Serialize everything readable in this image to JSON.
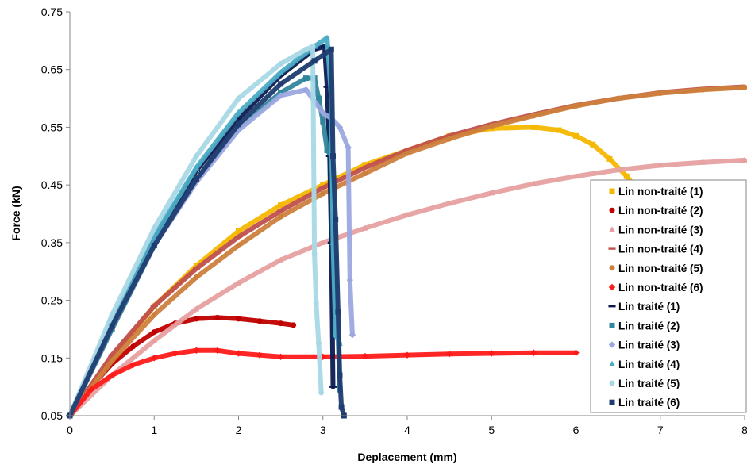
{
  "chart_data": {
    "type": "scatter",
    "title": "",
    "xlabel": "Deplacement (mm)",
    "ylabel": "Force (kN)",
    "xlim": [
      0,
      8
    ],
    "ylim": [
      0.05,
      0.75
    ],
    "x_ticks": [
      "0",
      "1",
      "2",
      "3",
      "4",
      "5",
      "6",
      "7",
      "8"
    ],
    "y_ticks": [
      "0.05",
      "0.15",
      "0.25",
      "0.35",
      "0.45",
      "0.55",
      "0.65",
      "0.75"
    ],
    "grid": false,
    "legend_position": "right",
    "series": [
      {
        "name": "Lin non-traité (1)",
        "color": "#F5B800",
        "marker": "square",
        "x": [
          0,
          0.5,
          1,
          1.5,
          2,
          2.5,
          3,
          3.5,
          4,
          4.5,
          5,
          5.5,
          5.8,
          6,
          6.2,
          6.4,
          6.6,
          6.8
        ],
        "y": [
          0.05,
          0.15,
          0.24,
          0.31,
          0.37,
          0.415,
          0.45,
          0.485,
          0.51,
          0.535,
          0.548,
          0.55,
          0.545,
          0.535,
          0.52,
          0.495,
          0.465,
          0.43
        ]
      },
      {
        "name": "Lin non-traité (2)",
        "color": "#C00000",
        "marker": "circle",
        "x": [
          0,
          0.25,
          0.5,
          0.75,
          1,
          1.25,
          1.5,
          1.75,
          2,
          2.25,
          2.5,
          2.65
        ],
        "y": [
          0.05,
          0.1,
          0.14,
          0.17,
          0.195,
          0.21,
          0.218,
          0.22,
          0.218,
          0.214,
          0.21,
          0.207
        ]
      },
      {
        "name": "Lin non-traité (3)",
        "color": "#E6A0A0",
        "marker": "triangle",
        "x": [
          0,
          0.5,
          1,
          1.5,
          2,
          2.5,
          3,
          3.5,
          4,
          4.5,
          5,
          5.5,
          6,
          6.5,
          7,
          7.5,
          8
        ],
        "y": [
          0.05,
          0.12,
          0.18,
          0.235,
          0.28,
          0.32,
          0.35,
          0.375,
          0.398,
          0.418,
          0.436,
          0.452,
          0.465,
          0.476,
          0.484,
          0.489,
          0.493
        ]
      },
      {
        "name": "Lin non-traité (4)",
        "color": "#C0504D",
        "marker": "dash",
        "x": [
          0,
          0.5,
          1,
          1.5,
          2,
          2.5,
          3,
          3.5,
          4,
          4.5,
          5,
          5.5,
          6,
          6.5,
          7,
          7.5,
          8
        ],
        "y": [
          0.05,
          0.155,
          0.24,
          0.305,
          0.36,
          0.405,
          0.445,
          0.48,
          0.51,
          0.535,
          0.555,
          0.572,
          0.588,
          0.6,
          0.61,
          0.616,
          0.62
        ]
      },
      {
        "name": "Lin non-traité (5)",
        "color": "#CD7F3C",
        "marker": "circle",
        "x": [
          0,
          0.5,
          1,
          1.5,
          2,
          2.5,
          3,
          3.5,
          4,
          4.5,
          5,
          5.5,
          6,
          6.5,
          7,
          7.5,
          8
        ],
        "y": [
          0.05,
          0.145,
          0.225,
          0.29,
          0.345,
          0.395,
          0.435,
          0.47,
          0.505,
          0.53,
          0.552,
          0.57,
          0.587,
          0.6,
          0.609,
          0.615,
          0.619
        ]
      },
      {
        "name": "Lin non-traité (6)",
        "color": "#FF1A1A",
        "marker": "diamond",
        "x": [
          0,
          0.25,
          0.5,
          0.75,
          1,
          1.25,
          1.5,
          1.75,
          2,
          2.25,
          2.5,
          3,
          3.5,
          4,
          4.5,
          5,
          5.5,
          6
        ],
        "y": [
          0.05,
          0.095,
          0.12,
          0.138,
          0.15,
          0.158,
          0.163,
          0.163,
          0.158,
          0.155,
          0.152,
          0.152,
          0.153,
          0.155,
          0.157,
          0.158,
          0.159,
          0.159
        ]
      },
      {
        "name": "Lin traité (1)",
        "color": "#0D1A50",
        "marker": "dash",
        "x": [
          0,
          0.5,
          1,
          1.5,
          2,
          2.5,
          2.9,
          3.02,
          3.05,
          3.08,
          3.1,
          3.12
        ],
        "y": [
          0.05,
          0.215,
          0.355,
          0.475,
          0.565,
          0.64,
          0.685,
          0.69,
          0.62,
          0.5,
          0.35,
          0.1
        ]
      },
      {
        "name": "Lin traité (2)",
        "color": "#31859C",
        "marker": "square",
        "x": [
          0,
          0.5,
          1,
          1.5,
          2,
          2.5,
          2.8,
          2.9,
          2.95,
          3.0,
          3.05,
          3.1,
          3.15,
          3.2
        ],
        "y": [
          0.05,
          0.2,
          0.345,
          0.46,
          0.55,
          0.61,
          0.635,
          0.635,
          0.6,
          0.56,
          0.51,
          0.5,
          0.33,
          0.095
        ]
      },
      {
        "name": "Lin traité (3)",
        "color": "#9BA8E0",
        "marker": "diamond",
        "x": [
          0,
          0.5,
          1,
          1.5,
          2,
          2.5,
          2.8,
          2.9,
          3.0,
          3.1,
          3.2,
          3.3,
          3.32,
          3.35
        ],
        "y": [
          0.05,
          0.205,
          0.345,
          0.455,
          0.545,
          0.605,
          0.615,
          0.595,
          0.575,
          0.565,
          0.55,
          0.515,
          0.285,
          0.19
        ]
      },
      {
        "name": "Lin traité (4)",
        "color": "#4BACC6",
        "marker": "triangle",
        "x": [
          0,
          0.5,
          1,
          1.5,
          2,
          2.5,
          2.9,
          3.05,
          3.1,
          3.12,
          3.15,
          3.2
        ],
        "y": [
          0.05,
          0.215,
          0.36,
          0.48,
          0.575,
          0.645,
          0.69,
          0.705,
          0.6,
          0.35,
          0.19,
          0.175
        ]
      },
      {
        "name": "Lin traité (5)",
        "color": "#A8D8E6",
        "marker": "circle",
        "x": [
          0,
          0.5,
          1,
          1.5,
          2,
          2.5,
          2.8,
          2.88,
          2.9,
          2.92,
          2.95,
          2.98
        ],
        "y": [
          0.05,
          0.225,
          0.375,
          0.5,
          0.6,
          0.66,
          0.685,
          0.69,
          0.33,
          0.245,
          0.175,
          0.09
        ]
      },
      {
        "name": "Lin traité (6)",
        "color": "#1F3C70",
        "marker": "square",
        "x": [
          0,
          0.5,
          1,
          1.5,
          2,
          2.5,
          2.9,
          3.1,
          3.12,
          3.15,
          3.18,
          3.2,
          3.22,
          3.25
        ],
        "y": [
          0.05,
          0.205,
          0.345,
          0.46,
          0.555,
          0.625,
          0.665,
          0.685,
          0.5,
          0.39,
          0.23,
          0.12,
          0.065,
          0.05
        ]
      }
    ]
  }
}
